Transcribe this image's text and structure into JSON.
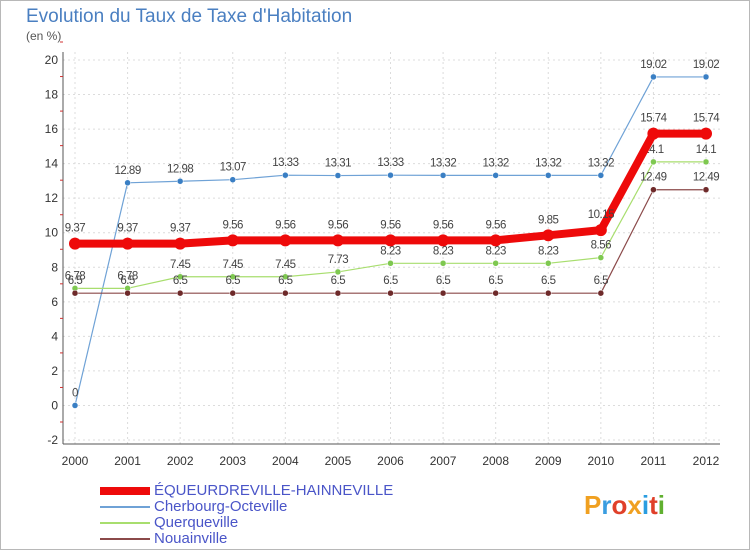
{
  "title": "Evolution du Taux de Taxe d'Habitation",
  "unit_label": "(en %)",
  "logo": {
    "letters": [
      "P",
      "r",
      "o",
      "x",
      "i",
      "t",
      "i"
    ],
    "colors": [
      "#f0a020",
      "#3a9de0",
      "#e0402a",
      "#f0a020",
      "#2a9de0",
      "#e0402a",
      "#60b030"
    ]
  },
  "chart_data": {
    "type": "line",
    "title": "Evolution du Taux de Taxe d'Habitation",
    "ylabel": "(en %)",
    "xlabel": "",
    "ylim": [
      -2,
      20
    ],
    "yticks": [
      -2,
      0,
      2,
      4,
      6,
      8,
      10,
      12,
      14,
      16,
      18,
      20
    ],
    "categories": [
      "2000",
      "2001",
      "2002",
      "2003",
      "2004",
      "2005",
      "2006",
      "2007",
      "2008",
      "2009",
      "2010",
      "2011",
      "2012"
    ],
    "grid": true,
    "series": [
      {
        "name": "Cherbourg-Octeville",
        "color": "#6fa2d6",
        "marker": "#3a7fc4",
        "width": 1.2,
        "r": 3,
        "values": [
          0,
          12.89,
          12.98,
          13.07,
          13.33,
          13.31,
          13.33,
          13.32,
          13.32,
          13.32,
          13.32,
          19.02,
          19.02
        ],
        "labels": [
          "0",
          "12.89",
          "12.98",
          "13.07",
          "13.33",
          "13.31",
          "13.33",
          "13.32",
          "13.32",
          "13.32",
          "13.32",
          "19.02",
          "19.02"
        ]
      },
      {
        "name": "Querqueville",
        "color": "#a8de6e",
        "marker": "#7ec850",
        "width": 1.2,
        "r": 3,
        "values": [
          6.78,
          6.78,
          7.45,
          7.45,
          7.45,
          7.73,
          8.23,
          8.23,
          8.23,
          8.23,
          8.56,
          14.1,
          14.1
        ],
        "labels": [
          "6.78",
          "6.78",
          "7.45",
          "7.45",
          "7.45",
          "7.73",
          "8.23",
          "8.23",
          "8.23",
          "8.23",
          "8.56",
          "14.1",
          "14.1"
        ]
      },
      {
        "name": "Nouainville",
        "color": "#8b4a4a",
        "marker": "#6e2a2a",
        "width": 1.2,
        "r": 3,
        "values": [
          6.5,
          6.5,
          6.5,
          6.5,
          6.5,
          6.5,
          6.5,
          6.5,
          6.5,
          6.5,
          6.5,
          12.49,
          12.49
        ],
        "labels": [
          "6.5",
          "6.5",
          "6.5",
          "6.5",
          "6.5",
          "6.5",
          "6.5",
          "6.5",
          "6.5",
          "6.5",
          "6.5",
          "12.49",
          "12.49"
        ]
      },
      {
        "name": "ÉQUEURDREVILLE-HAINNEVILLE",
        "color": "#ee0a0a",
        "marker": "#ee0a0a",
        "width": 8,
        "r": 6,
        "values": [
          9.37,
          9.37,
          9.37,
          9.56,
          9.56,
          9.56,
          9.56,
          9.56,
          9.56,
          9.85,
          10.15,
          15.74,
          15.74
        ],
        "labels": [
          "9.37",
          "9.37",
          "9.37",
          "9.56",
          "9.56",
          "9.56",
          "9.56",
          "9.56",
          "9.56",
          "9.85",
          "10.15",
          "15.74",
          "15.74"
        ]
      }
    ]
  },
  "legend": [
    {
      "label": "ÉQUEURDREVILLE-HAINNEVILLE",
      "color": "#ee0a0a",
      "thickness": 8
    },
    {
      "label": "Cherbourg-Octeville",
      "color": "#6fa2d6",
      "thickness": 2
    },
    {
      "label": "Querqueville",
      "color": "#a8de6e",
      "thickness": 2
    },
    {
      "label": "Nouainville",
      "color": "#8b4a4a",
      "thickness": 2
    }
  ]
}
